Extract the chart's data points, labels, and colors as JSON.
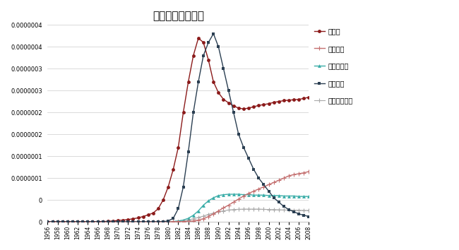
{
  "title": "人工智能发展趋势",
  "title_fontsize": 11,
  "background_color": "#ffffff",
  "years": [
    1956,
    1957,
    1958,
    1959,
    1960,
    1961,
    1962,
    1963,
    1964,
    1965,
    1966,
    1967,
    1968,
    1969,
    1970,
    1971,
    1972,
    1973,
    1974,
    1975,
    1976,
    1977,
    1978,
    1979,
    1980,
    1981,
    1982,
    1983,
    1984,
    1985,
    1986,
    1987,
    1988,
    1989,
    1990,
    1991,
    1992,
    1993,
    1994,
    1995,
    1996,
    1997,
    1998,
    1999,
    2000,
    2001,
    2002,
    2003,
    2004,
    2005,
    2006,
    2007,
    2008
  ],
  "robot": [
    2e-10,
    2e-10,
    2e-10,
    2e-10,
    2e-10,
    2e-10,
    2e-10,
    2e-10,
    2e-10,
    2e-10,
    5e-10,
    8e-10,
    1e-09,
    2e-09,
    3e-09,
    4e-09,
    5e-09,
    7e-09,
    9e-09,
    1.2e-08,
    1.6e-08,
    2e-08,
    3e-08,
    5e-08,
    8e-08,
    1.2e-07,
    1.7e-07,
    2.5e-07,
    3.2e-07,
    3.8e-07,
    4.2e-07,
    4.1e-07,
    3.7e-07,
    3.2e-07,
    2.95e-07,
    2.8e-07,
    2.72e-07,
    2.65e-07,
    2.6e-07,
    2.58e-07,
    2.6e-07,
    2.63e-07,
    2.66e-07,
    2.68e-07,
    2.7e-07,
    2.73e-07,
    2.75e-07,
    2.77e-07,
    2.78e-07,
    2.79e-07,
    2.8e-07,
    2.82e-07,
    2.85e-07
  ],
  "machine_learning": [
    1e-10,
    1e-10,
    1e-10,
    1e-10,
    1e-10,
    1e-10,
    1e-10,
    1e-10,
    1e-10,
    1e-10,
    1e-10,
    1e-10,
    1e-10,
    1e-10,
    1e-10,
    1e-10,
    1e-10,
    1e-10,
    1e-10,
    1e-10,
    1e-10,
    1e-10,
    1e-10,
    2e-10,
    3e-10,
    4e-10,
    6e-10,
    8e-10,
    1e-09,
    2e-09,
    4e-09,
    7e-09,
    1.2e-08,
    1.8e-08,
    2.5e-08,
    3.2e-08,
    3.8e-08,
    4.5e-08,
    5.2e-08,
    5.9e-08,
    6.5e-08,
    7e-08,
    7.5e-08,
    8e-08,
    8.5e-08,
    9e-08,
    9.5e-08,
    1e-07,
    1.05e-07,
    1.08e-07,
    1.1e-07,
    1.12e-07,
    1.15e-07
  ],
  "computer_vision": [
    1e-10,
    1e-10,
    1e-10,
    1e-10,
    1e-10,
    1e-10,
    1e-10,
    1e-10,
    1e-10,
    1e-10,
    1e-10,
    1e-10,
    1e-10,
    1e-10,
    1e-10,
    1e-10,
    1e-10,
    1e-10,
    1e-10,
    1e-10,
    1e-10,
    1e-10,
    1e-10,
    2e-10,
    4e-10,
    8e-10,
    2e-09,
    4e-09,
    8e-09,
    1.5e-08,
    2.5e-08,
    3.8e-08,
    4.8e-08,
    5.5e-08,
    6e-08,
    6.2e-08,
    6.3e-08,
    6.3e-08,
    6.3e-08,
    6.2e-08,
    6.2e-08,
    6.1e-08,
    6.1e-08,
    6.1e-08,
    6e-08,
    6e-08,
    6e-08,
    5.9e-08,
    5.9e-08,
    5.9e-08,
    5.8e-08,
    5.8e-08,
    5.8e-08
  ],
  "expert_system": [
    1e-10,
    1e-10,
    1e-10,
    1e-10,
    1e-10,
    1e-10,
    1e-10,
    1e-10,
    1e-10,
    1e-10,
    1e-10,
    1e-10,
    1e-10,
    1e-10,
    1e-10,
    1e-10,
    1e-10,
    1e-10,
    1e-10,
    1e-10,
    1e-10,
    1e-10,
    2e-10,
    5e-10,
    2e-09,
    8e-09,
    3e-08,
    8e-08,
    1.6e-07,
    2.5e-07,
    3.2e-07,
    3.8e-07,
    4.1e-07,
    4.3e-07,
    4e-07,
    3.5e-07,
    3e-07,
    2.5e-07,
    2e-07,
    1.7e-07,
    1.45e-07,
    1.2e-07,
    1e-07,
    8.5e-08,
    7e-08,
    5.5e-08,
    4.5e-08,
    3.5e-08,
    2.8e-08,
    2.3e-08,
    1.8e-08,
    1.5e-08,
    1.2e-08
  ],
  "nlp": [
    1e-10,
    1e-10,
    1e-10,
    1e-10,
    1e-10,
    1e-10,
    1e-10,
    1e-10,
    1e-10,
    1e-10,
    1e-10,
    1e-10,
    1e-10,
    1e-10,
    1e-10,
    1e-10,
    1e-10,
    1e-10,
    1e-10,
    1e-10,
    1e-10,
    1e-10,
    1e-10,
    1e-10,
    2e-10,
    4e-10,
    8e-10,
    2e-09,
    4e-09,
    7e-09,
    1e-08,
    1.3e-08,
    1.7e-08,
    2e-08,
    2.3e-08,
    2.5e-08,
    2.7e-08,
    2.8e-08,
    2.85e-08,
    2.9e-08,
    2.9e-08,
    2.9e-08,
    2.9e-08,
    2.85e-08,
    2.8e-08,
    2.8e-08,
    2.75e-08,
    2.7e-08,
    2.7e-08,
    2.65e-08,
    2.65e-08,
    2.6e-08,
    2.6e-08
  ],
  "robot_color": "#8B1A1A",
  "machine_learning_color": "#C47070",
  "computer_vision_color": "#3AADA8",
  "expert_system_color": "#2B3F52",
  "nlp_color": "#AAAAAA",
  "ylim_max": 4.5e-07,
  "ylim_ticks": [
    0,
    5e-08,
    1e-07,
    1.5e-07,
    2e-07,
    2.5e-07,
    3e-07,
    3.5e-07,
    4e-07,
    4.5e-07
  ],
  "legend_labels": [
    "机器人",
    "机器学习",
    "计算机视觉",
    "专家系统",
    "自然语言处理"
  ]
}
